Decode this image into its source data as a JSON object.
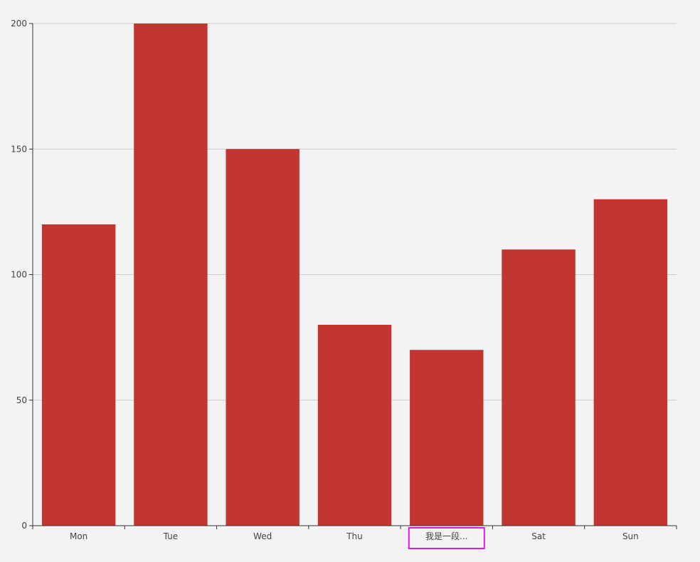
{
  "chart_data": {
    "type": "bar",
    "categories": [
      "Mon",
      "Tue",
      "Wed",
      "Thu",
      "我是一段...",
      "Sat",
      "Sun"
    ],
    "values": [
      120,
      200,
      150,
      80,
      70,
      110,
      130
    ],
    "ylim": [
      0,
      200
    ],
    "yticks": [
      0,
      50,
      100,
      150,
      200
    ],
    "grid": true,
    "bar_color": "#c23531",
    "highlighted_category_index": 4,
    "highlight_color": "#e815e8",
    "title": "",
    "xlabel": "",
    "ylabel": ""
  }
}
